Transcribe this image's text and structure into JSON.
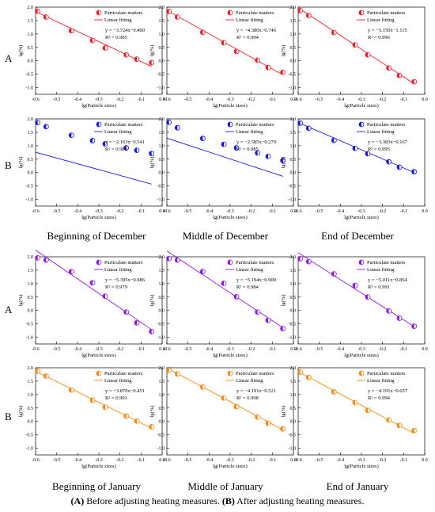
{
  "row_labels": [
    "A",
    "B",
    "A",
    "B"
  ],
  "column_labels": [
    "Beginning of December",
    "Middle of December",
    "End of December",
    "Beginning of January",
    "Middle of January",
    "End of January"
  ],
  "caption": {
    "a_tag": "(A)",
    "a_text": " Before adjusting heating measures. ",
    "b_tag": "(B)",
    "b_text": " After adjusting heating measures."
  },
  "chart_data": [
    {
      "type": "scatter",
      "series": [
        {
          "name": "Particulate matters",
          "x": [
            -0.59,
            -0.55,
            -0.43,
            -0.33,
            -0.27,
            -0.17,
            -0.12,
            -0.05
          ],
          "y": [
            1.85,
            1.63,
            1.12,
            0.76,
            0.48,
            0.22,
            0.06,
            -0.07
          ]
        },
        {
          "name": "Linear fitting",
          "fit": {
            "slope": -3.724,
            "intercept": -0.4
          }
        }
      ],
      "equation": "y = −3.724x−0.400",
      "r2": "R² = 0.985",
      "xlabel": "lg(Particle sizes)",
      "ylabel": "lg(%)",
      "xlim": [
        -0.6,
        0.0
      ],
      "ylim": [
        -1.25,
        2.0
      ],
      "xticks": [
        "-0.6",
        "-0.5",
        "-0.4",
        "-0.3",
        "-0.2",
        "-0.1",
        "0.0"
      ],
      "yticks": [
        "-1.0",
        "-0.5",
        "0.0",
        "0.5",
        "1.0",
        "1.5",
        "2.0"
      ],
      "color": "#e8202a",
      "marker": "half"
    },
    {
      "type": "scatter",
      "series": [
        {
          "name": "Particulate matters",
          "x": [
            -0.59,
            -0.55,
            -0.43,
            -0.33,
            -0.27,
            -0.17,
            -0.12,
            -0.05
          ],
          "y": [
            1.84,
            1.63,
            1.06,
            0.67,
            0.35,
            0.02,
            -0.25,
            -0.43
          ]
        },
        {
          "name": "Linear fitting",
          "fit": {
            "slope": -4.38,
            "intercept": -0.746
          }
        }
      ],
      "equation": "y = −4.380x−0.746",
      "r2": "R² = 0.994",
      "xlabel": "lg(Particle sizes)",
      "ylabel": "lg(%)",
      "xlim": [
        -0.6,
        0.0
      ],
      "ylim": [
        -1.25,
        2.0
      ],
      "xticks": [
        "-0.6",
        "-0.5",
        "-0.4",
        "-0.3",
        "-0.2",
        "-0.1",
        "0.0"
      ],
      "yticks": [
        "-1.0",
        "-0.5",
        "0.0",
        "0.5",
        "1.0",
        "1.5",
        "2.0"
      ],
      "color": "#e8202a",
      "marker": "half"
    },
    {
      "type": "scatter",
      "series": [
        {
          "name": "Particulate matters",
          "x": [
            -0.59,
            -0.55,
            -0.43,
            -0.33,
            -0.27,
            -0.17,
            -0.12,
            -0.05
          ],
          "y": [
            1.87,
            1.69,
            1.05,
            0.59,
            0.22,
            -0.27,
            -0.55,
            -0.78
          ]
        },
        {
          "name": "Linear fitting",
          "fit": {
            "slope": -5.15,
            "intercept": -1.115
          }
        }
      ],
      "equation": "y = −5.150x−1.115",
      "r2": "R² = 0.996",
      "xlabel": "lg(Particle sizes)",
      "ylabel": "lg(%)",
      "xlim": [
        -0.6,
        0.0
      ],
      "ylim": [
        -1.25,
        2.0
      ],
      "xticks": [
        "-0.6",
        "-0.5",
        "-0.4",
        "-0.3",
        "-0.2",
        "-0.1",
        "0.0"
      ],
      "yticks": [
        "-1.0",
        "-0.5",
        "0.0",
        "0.5",
        "1.0",
        "1.5",
        "2.0"
      ],
      "color": "#e8202a",
      "marker": "half"
    },
    {
      "type": "scatter",
      "series": [
        {
          "name": "Particulate matters",
          "x": [
            -0.59,
            -0.55,
            -0.43,
            -0.33,
            -0.27,
            -0.17,
            -0.12,
            -0.05
          ],
          "y": [
            1.86,
            1.71,
            1.39,
            1.19,
            1.07,
            0.92,
            0.83,
            0.71
          ]
        },
        {
          "name": "Linear fitting",
          "fit": {
            "slope": -2.163,
            "intercept": -0.541
          }
        }
      ],
      "equation": "y = −2.163x−0.541",
      "r2": "R² = 0.985",
      "xlabel": "lg(Particle sizes)",
      "ylabel": "lg(%)",
      "xlim": [
        -0.6,
        0.0
      ],
      "ylim": [
        -1.25,
        2.0
      ],
      "xticks": [
        "-0.6",
        "-0.5",
        "-0.4",
        "-0.3",
        "-0.2",
        "-0.1",
        "0.0"
      ],
      "yticks": [
        "-1.0",
        "-0.5",
        "0.0",
        "0.5",
        "1.0",
        "1.5",
        "2.0"
      ],
      "color": "#1a1adc",
      "marker": "half"
    },
    {
      "type": "scatter",
      "series": [
        {
          "name": "Particulate matters",
          "x": [
            -0.59,
            -0.55,
            -0.43,
            -0.33,
            -0.27,
            -0.17,
            -0.12,
            -0.05
          ],
          "y": [
            1.87,
            1.67,
            1.27,
            1.05,
            0.92,
            0.73,
            0.6,
            0.45
          ]
        },
        {
          "name": "Linear fitting",
          "fit": {
            "slope": -2.585,
            "intercept": -0.27
          }
        }
      ],
      "equation": "y = −2.585x−0.270",
      "r2": "R² = 0.985",
      "xlabel": "lg(Particle sizes)",
      "ylabel": "lg(%)",
      "xlim": [
        -0.6,
        0.0
      ],
      "ylim": [
        -1.25,
        2.0
      ],
      "xticks": [
        "-0.6",
        "-0.5",
        "-0.4",
        "-0.3",
        "-0.2",
        "-0.1",
        "0.0"
      ],
      "yticks": [
        "-1.0",
        "-0.5",
        "0.0",
        "0.5",
        "1.0",
        "1.5",
        "2.0"
      ],
      "color": "#1a1adc",
      "marker": "half"
    },
    {
      "type": "scatter",
      "series": [
        {
          "name": "Particulate matters",
          "x": [
            -0.59,
            -0.55,
            -0.43,
            -0.33,
            -0.27,
            -0.17,
            -0.12,
            -0.05
          ],
          "y": [
            1.84,
            1.65,
            1.2,
            0.9,
            0.7,
            0.4,
            0.2,
            0.03
          ]
        },
        {
          "name": "Linear fitting",
          "fit": {
            "slope": -3.383,
            "intercept": -0.167
          }
        }
      ],
      "equation": "y = −3.383x−0.167",
      "r2": "R² = 0.995",
      "xlabel": "lg(Particle sizes)",
      "ylabel": "lg(%)",
      "xlim": [
        -0.6,
        0.0
      ],
      "ylim": [
        -1.25,
        2.0
      ],
      "xticks": [
        "-0.6",
        "-0.5",
        "-0.4",
        "-0.3",
        "-0.2",
        "-0.1",
        "0.0"
      ],
      "yticks": [
        "-1.0",
        "-0.5",
        "0.0",
        "0.5",
        "1.0",
        "1.5",
        "2.0"
      ],
      "color": "#1a1adc",
      "marker": "half"
    },
    {
      "type": "scatter",
      "series": [
        {
          "name": "Particulate matters",
          "x": [
            -0.59,
            -0.55,
            -0.43,
            -0.33,
            -0.27,
            -0.17,
            -0.12,
            -0.05
          ],
          "y": [
            1.96,
            1.88,
            1.45,
            1.03,
            0.53,
            -0.06,
            -0.46,
            -0.79
          ]
        },
        {
          "name": "Linear fitting",
          "fit": {
            "slope": -5.395,
            "intercept": -0.986
          }
        }
      ],
      "equation": "y = −5.395x−0.986",
      "r2": "R² = 0.979",
      "xlabel": "lg(Particle sizes)",
      "ylabel": "lg(%)",
      "xlim": [
        -0.6,
        0.0
      ],
      "ylim": [
        -1.25,
        2.0
      ],
      "xticks": [
        "-0.6",
        "-0.5",
        "-0.4",
        "-0.3",
        "-0.2",
        "-0.1",
        "0.0"
      ],
      "yticks": [
        "-1.0",
        "-0.5",
        "0.0",
        "0.5",
        "1.0",
        "1.5",
        "2.0"
      ],
      "color": "#8a1ae0",
      "marker": "half"
    },
    {
      "type": "scatter",
      "series": [
        {
          "name": "Particulate matters",
          "x": [
            -0.59,
            -0.55,
            -0.43,
            -0.33,
            -0.27,
            -0.17,
            -0.12,
            -0.05
          ],
          "y": [
            1.93,
            1.88,
            1.45,
            1.01,
            0.51,
            -0.06,
            -0.37,
            -0.68
          ]
        },
        {
          "name": "Linear fitting",
          "fit": {
            "slope": -5.194,
            "intercept": -0.9
          }
        }
      ],
      "equation": "y = −5.194x−0.900",
      "r2": "R² = 0.984",
      "xlabel": "lg(Particle sizes)",
      "ylabel": "lg(%)",
      "xlim": [
        -0.6,
        0.0
      ],
      "ylim": [
        -1.25,
        2.0
      ],
      "xticks": [
        "-0.6",
        "-0.5",
        "-0.4",
        "-0.3",
        "-0.2",
        "-0.1",
        "0.0"
      ],
      "yticks": [
        "-1.0",
        "-0.5",
        "0.0",
        "0.5",
        "1.0",
        "1.5",
        "2.0"
      ],
      "color": "#8a1ae0",
      "marker": "half"
    },
    {
      "type": "scatter",
      "series": [
        {
          "name": "Particulate matters",
          "x": [
            -0.59,
            -0.55,
            -0.43,
            -0.33,
            -0.27,
            -0.17,
            -0.12,
            -0.05
          ],
          "y": [
            1.93,
            1.82,
            1.36,
            0.93,
            0.5,
            -0.02,
            -0.29,
            -0.59
          ]
        },
        {
          "name": "Linear fitting",
          "fit": {
            "slope": -5.011,
            "intercept": -0.854
          }
        }
      ],
      "equation": "y = −5.011x−0.854",
      "r2": "R² = 0.991",
      "xlabel": "lg(Particle sizes)",
      "ylabel": "lg(%)",
      "xlim": [
        -0.6,
        0.0
      ],
      "ylim": [
        -1.25,
        2.0
      ],
      "xticks": [
        "-0.6",
        "-0.5",
        "-0.4",
        "-0.3",
        "-0.2",
        "-0.1",
        "0.0"
      ],
      "yticks": [
        "-1.0",
        "-0.5",
        "0.0",
        "0.5",
        "1.0",
        "1.5",
        "2.0"
      ],
      "color": "#8a1ae0",
      "marker": "half"
    },
    {
      "type": "scatter",
      "series": [
        {
          "name": "Particulate matters",
          "x": [
            -0.59,
            -0.55,
            -0.43,
            -0.33,
            -0.27,
            -0.17,
            -0.12,
            -0.05
          ],
          "y": [
            1.87,
            1.69,
            1.17,
            0.79,
            0.53,
            0.2,
            0.01,
            -0.2
          ]
        },
        {
          "name": "Linear fitting",
          "fit": {
            "slope": -3.87,
            "intercept": -0.451
          }
        }
      ],
      "equation": "y = −3.870x−0.451",
      "r2": "R² = 0.993",
      "xlabel": "lg(Particle sizes)",
      "ylabel": "lg(%)",
      "xlim": [
        -0.6,
        0.0
      ],
      "ylim": [
        -1.25,
        2.0
      ],
      "xticks": [
        "-0.6",
        "-0.5",
        "-0.4",
        "-0.3",
        "-0.2",
        "-0.1",
        "0.0"
      ],
      "yticks": [
        "-1.0",
        "-0.5",
        "0.0",
        "0.5",
        "1.0",
        "1.5",
        "2.0"
      ],
      "color": "#f08a10",
      "marker": "half"
    },
    {
      "type": "scatter",
      "series": [
        {
          "name": "Particulate matters",
          "x": [
            -0.59,
            -0.55,
            -0.43,
            -0.33,
            -0.27,
            -0.17,
            -0.12,
            -0.05
          ],
          "y": [
            1.9,
            1.77,
            1.28,
            0.87,
            0.55,
            0.16,
            -0.07,
            -0.28
          ]
        },
        {
          "name": "Linear fitting",
          "fit": {
            "slope": -4.191,
            "intercept": -0.521
          }
        }
      ],
      "equation": "y = −4.191x−0.521",
      "r2": "R² = 0.998",
      "xlabel": "lg(Particle sizes)",
      "ylabel": "lg(%)",
      "xlim": [
        -0.6,
        0.0
      ],
      "ylim": [
        -1.25,
        2.0
      ],
      "xticks": [
        "-0.6",
        "-0.5",
        "-0.4",
        "-0.3",
        "-0.2",
        "-0.1",
        "0.0"
      ],
      "yticks": [
        "-1.0",
        "-0.5",
        "0.0",
        "0.5",
        "1.0",
        "1.5",
        "2.0"
      ],
      "color": "#f08a10",
      "marker": "half"
    },
    {
      "type": "scatter",
      "series": [
        {
          "name": "Particulate matters",
          "x": [
            -0.59,
            -0.55,
            -0.43,
            -0.33,
            -0.27,
            -0.17,
            -0.12,
            -0.05
          ],
          "y": [
            1.84,
            1.64,
            1.1,
            0.7,
            0.41,
            0.05,
            -0.15,
            -0.34
          ]
        },
        {
          "name": "Linear fitting",
          "fit": {
            "slope": -4.191,
            "intercept": -0.657
          }
        }
      ],
      "equation": "y = −4.191x−0.657",
      "r2": "R² = 0.994",
      "xlabel": "lg(Particle sizes)",
      "ylabel": "lg(%)",
      "xlim": [
        -0.6,
        0.0
      ],
      "ylim": [
        -1.25,
        2.0
      ],
      "xticks": [
        "-0.6",
        "-0.5",
        "-0.4",
        "-0.3",
        "-0.2",
        "-0.1",
        "0.0"
      ],
      "yticks": [
        "-1.0",
        "-0.5",
        "0.0",
        "0.5",
        "1.0",
        "1.5",
        "2.0"
      ],
      "color": "#f08a10",
      "marker": "half"
    }
  ]
}
